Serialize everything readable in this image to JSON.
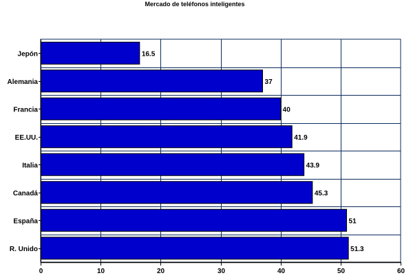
{
  "chart_data": {
    "type": "bar",
    "orientation": "horizontal",
    "title": "Mercado de teléfonos inteligentes",
    "xlabel": "",
    "ylabel": "",
    "categories": [
      "Jepón",
      "Alemania",
      "Francia",
      "EE.UU.",
      "Italia",
      "Canadá",
      "España",
      "R. Unido"
    ],
    "values": [
      16.5,
      37,
      40,
      41.9,
      43.9,
      45.3,
      51,
      51.3
    ],
    "xlim": [
      0,
      60
    ],
    "xticks": [
      0,
      10,
      20,
      30,
      40,
      50,
      60
    ],
    "grid": true,
    "legend": "none",
    "colors": {
      "bar_fill": "#0000CC",
      "bar_stroke": "#000000",
      "grid": "#0A2A5A",
      "axis": "#000000"
    }
  }
}
